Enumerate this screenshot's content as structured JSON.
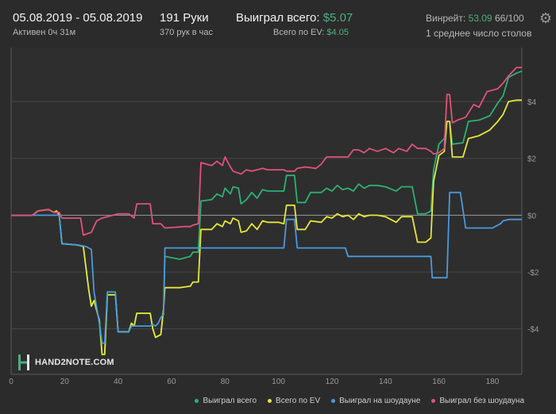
{
  "header": {
    "date_range": "05.08.2019 - 05.08.2019",
    "active": "Активен 0ч 31м",
    "hands": "191 Руки",
    "hands_per_hour": "370 рук в час",
    "won_total_label": "Выиграл всего:",
    "won_total_value": "$5.07",
    "ev_label": "Всего по EV:",
    "ev_value": "$4.05",
    "winrate_label": "Винрейт:",
    "winrate_value": "53.09",
    "winrate_hands": "66/100",
    "avg_tables": "1 среднее число столов"
  },
  "logo_text": "HAND2NOTE.COM",
  "chart_data": {
    "type": "line",
    "xlim": [
      0,
      191
    ],
    "ylim": [
      -5.6,
      5.9
    ],
    "x_ticks": [
      0,
      20,
      40,
      60,
      80,
      100,
      120,
      140,
      160,
      180
    ],
    "x_tick_labels": [
      "0",
      "20",
      "40",
      "60",
      "80",
      "100",
      "120",
      "140",
      "160",
      "180"
    ],
    "y_ticks": [
      -4,
      -2,
      0,
      2,
      4
    ],
    "y_tick_labels": [
      "-$4",
      "-$2",
      "$0",
      "$2",
      "$4"
    ],
    "grid": "horizontal",
    "legend_position": "bottom-right",
    "series": [
      {
        "name": "Выиграл всего",
        "color": "#2fb073",
        "points": [
          [
            0,
            0
          ],
          [
            8,
            0
          ],
          [
            10,
            0.15
          ],
          [
            14,
            0.2
          ],
          [
            16,
            0.1
          ],
          [
            17,
            0.15
          ],
          [
            18,
            0
          ],
          [
            19,
            -1
          ],
          [
            25,
            -1.05
          ],
          [
            27,
            -1.1
          ],
          [
            29,
            -2.6
          ],
          [
            30,
            -3.2
          ],
          [
            31,
            -3
          ],
          [
            33,
            -3.7
          ],
          [
            34,
            -4.9
          ],
          [
            35,
            -4.9
          ],
          [
            36,
            -2.8
          ],
          [
            39,
            -2.8
          ],
          [
            40,
            -4.1
          ],
          [
            44,
            -4.1
          ],
          [
            45,
            -3.8
          ],
          [
            46,
            -3.9
          ],
          [
            47,
            -3.45
          ],
          [
            52,
            -3.45
          ],
          [
            53,
            -4
          ],
          [
            54,
            -4.3
          ],
          [
            56,
            -4.2
          ],
          [
            57,
            -3.3
          ],
          [
            57.5,
            -1.45
          ],
          [
            63,
            -1.55
          ],
          [
            67,
            -1.45
          ],
          [
            68,
            -1.3
          ],
          [
            70,
            -1.3
          ],
          [
            71,
            0.5
          ],
          [
            75,
            0.55
          ],
          [
            77,
            0.75
          ],
          [
            79,
            0.65
          ],
          [
            80,
            0.95
          ],
          [
            82,
            0.75
          ],
          [
            83,
            1
          ],
          [
            85,
            0.95
          ],
          [
            86,
            0.4
          ],
          [
            88,
            0.55
          ],
          [
            90,
            0.8
          ],
          [
            92,
            0.6
          ],
          [
            94,
            0.9
          ],
          [
            96,
            0.85
          ],
          [
            100,
            0.85
          ],
          [
            102,
            0.85
          ],
          [
            103,
            1.4
          ],
          [
            106,
            1.4
          ],
          [
            107,
            0.45
          ],
          [
            110,
            0.45
          ],
          [
            112,
            0.8
          ],
          [
            116,
            0.8
          ],
          [
            118,
            0.95
          ],
          [
            120,
            0.85
          ],
          [
            122,
            1.05
          ],
          [
            124,
            0.9
          ],
          [
            126,
            0.95
          ],
          [
            128,
            0.85
          ],
          [
            130,
            1.1
          ],
          [
            132,
            0.95
          ],
          [
            134,
            1.05
          ],
          [
            137,
            1.05
          ],
          [
            140,
            1
          ],
          [
            144,
            0.85
          ],
          [
            146,
            1
          ],
          [
            150,
            1
          ],
          [
            152,
            0.05
          ],
          [
            155,
            0.05
          ],
          [
            157,
            0.15
          ],
          [
            158,
            1.6
          ],
          [
            160,
            2.5
          ],
          [
            162,
            2.7
          ],
          [
            163,
            3.3
          ],
          [
            164,
            3.3
          ],
          [
            165,
            2.5
          ],
          [
            169,
            2.55
          ],
          [
            171,
            3.3
          ],
          [
            175,
            3.35
          ],
          [
            179,
            3.5
          ],
          [
            182,
            3.95
          ],
          [
            184,
            4.2
          ],
          [
            186,
            4.85
          ],
          [
            189,
            5.0
          ],
          [
            191,
            5.07
          ]
        ]
      },
      {
        "name": "Всего по EV",
        "color": "#e6e63a",
        "points": [
          [
            0,
            0
          ],
          [
            8,
            0
          ],
          [
            10,
            0.15
          ],
          [
            14,
            0.2
          ],
          [
            16,
            0.1
          ],
          [
            17,
            0.15
          ],
          [
            18,
            0
          ],
          [
            19,
            -1
          ],
          [
            25,
            -1.05
          ],
          [
            27,
            -1.1
          ],
          [
            29,
            -2.6
          ],
          [
            30,
            -3.2
          ],
          [
            31,
            -3
          ],
          [
            33,
            -3.7
          ],
          [
            34,
            -4.9
          ],
          [
            35,
            -4.9
          ],
          [
            36,
            -2.8
          ],
          [
            39,
            -2.8
          ],
          [
            40,
            -4.1
          ],
          [
            44,
            -4.1
          ],
          [
            45,
            -3.8
          ],
          [
            46,
            -3.9
          ],
          [
            47,
            -3.45
          ],
          [
            52,
            -3.45
          ],
          [
            53,
            -4
          ],
          [
            54,
            -4.3
          ],
          [
            56,
            -4.2
          ],
          [
            57,
            -3.3
          ],
          [
            57.5,
            -2.55
          ],
          [
            63,
            -2.55
          ],
          [
            67,
            -2.5
          ],
          [
            68,
            -2.35
          ],
          [
            70,
            -2.35
          ],
          [
            71,
            -0.5
          ],
          [
            75,
            -0.5
          ],
          [
            77,
            -0.3
          ],
          [
            79,
            -0.4
          ],
          [
            80,
            -0.2
          ],
          [
            82,
            -0.3
          ],
          [
            83,
            -0.1
          ],
          [
            85,
            -0.2
          ],
          [
            86,
            -0.6
          ],
          [
            88,
            -0.55
          ],
          [
            90,
            -0.3
          ],
          [
            92,
            -0.5
          ],
          [
            94,
            -0.2
          ],
          [
            96,
            -0.25
          ],
          [
            100,
            -0.25
          ],
          [
            102,
            -0.3
          ],
          [
            103,
            0.35
          ],
          [
            106,
            0.35
          ],
          [
            107,
            -0.5
          ],
          [
            110,
            -0.5
          ],
          [
            112,
            -0.2
          ],
          [
            116,
            -0.25
          ],
          [
            118,
            -0.05
          ],
          [
            120,
            -0.1
          ],
          [
            122,
            0.05
          ],
          [
            124,
            -0.05
          ],
          [
            126,
            0
          ],
          [
            128,
            -0.15
          ],
          [
            130,
            0.05
          ],
          [
            132,
            -0.05
          ],
          [
            134,
            0
          ],
          [
            137,
            0
          ],
          [
            140,
            -0.05
          ],
          [
            144,
            -0.25
          ],
          [
            146,
            -0.05
          ],
          [
            150,
            -0.05
          ],
          [
            152,
            -0.95
          ],
          [
            155,
            -0.95
          ],
          [
            157,
            -0.8
          ],
          [
            158,
            1.2
          ],
          [
            160,
            2.1
          ],
          [
            162,
            2.25
          ],
          [
            163,
            3.3
          ],
          [
            164,
            3.3
          ],
          [
            165,
            2.05
          ],
          [
            169,
            2.05
          ],
          [
            171,
            2.7
          ],
          [
            175,
            2.8
          ],
          [
            179,
            3.0
          ],
          [
            182,
            3.3
          ],
          [
            184,
            3.55
          ],
          [
            186,
            4.0
          ],
          [
            189,
            4.05
          ],
          [
            191,
            4.05
          ]
        ]
      },
      {
        "name": "Выиграл на шоудауне",
        "color": "#4a9ade",
        "points": [
          [
            0,
            0
          ],
          [
            8,
            0
          ],
          [
            10,
            0
          ],
          [
            14,
            0
          ],
          [
            16,
            0
          ],
          [
            18,
            0
          ],
          [
            19,
            -1
          ],
          [
            25,
            -1.05
          ],
          [
            28,
            -1.1
          ],
          [
            30,
            -1.2
          ],
          [
            31,
            -2.7
          ],
          [
            33,
            -3.8
          ],
          [
            34,
            -4.5
          ],
          [
            35,
            -4.5
          ],
          [
            36,
            -2.7
          ],
          [
            39,
            -2.7
          ],
          [
            40,
            -4.1
          ],
          [
            44,
            -4.1
          ],
          [
            45,
            -3.9
          ],
          [
            47,
            -3.9
          ],
          [
            52,
            -3.9
          ],
          [
            53,
            -3.85
          ],
          [
            54,
            -3.9
          ],
          [
            55,
            -3.8
          ],
          [
            56,
            -3.6
          ],
          [
            57,
            -3.5
          ],
          [
            57.5,
            -1.15
          ],
          [
            100,
            -1.15
          ],
          [
            102,
            -1.15
          ],
          [
            103,
            -0.15
          ],
          [
            106,
            -0.15
          ],
          [
            107,
            -1.15
          ],
          [
            125,
            -1.15
          ],
          [
            126,
            -1.45
          ],
          [
            155,
            -1.45
          ],
          [
            157,
            -1.45
          ],
          [
            157.5,
            -2.2
          ],
          [
            163,
            -2.2
          ],
          [
            164,
            0.8
          ],
          [
            168,
            0.8
          ],
          [
            170,
            -0.45
          ],
          [
            180,
            -0.45
          ],
          [
            183,
            -0.3
          ],
          [
            184,
            -0.2
          ],
          [
            186,
            -0.15
          ],
          [
            191,
            -0.15
          ]
        ]
      },
      {
        "name": "Выиграл без шоудауна",
        "color": "#e0527c",
        "points": [
          [
            0,
            0
          ],
          [
            8,
            0
          ],
          [
            10,
            0.15
          ],
          [
            14,
            0.2
          ],
          [
            16,
            0.1
          ],
          [
            18,
            0.1
          ],
          [
            19,
            -0.1
          ],
          [
            26,
            -0.1
          ],
          [
            27,
            -0.7
          ],
          [
            30,
            -0.6
          ],
          [
            32,
            -0.2
          ],
          [
            34,
            -0.1
          ],
          [
            36,
            -0.05
          ],
          [
            40,
            0.05
          ],
          [
            44,
            0.05
          ],
          [
            46,
            -0.1
          ],
          [
            47,
            0.4
          ],
          [
            52,
            0.4
          ],
          [
            53,
            -0.3
          ],
          [
            56,
            -0.3
          ],
          [
            57,
            -0.4
          ],
          [
            57.5,
            -0.45
          ],
          [
            65,
            -0.4
          ],
          [
            67,
            -0.4
          ],
          [
            68,
            -0.35
          ],
          [
            70,
            -0.3
          ],
          [
            71,
            1.85
          ],
          [
            75,
            1.75
          ],
          [
            77,
            1.9
          ],
          [
            79,
            1.75
          ],
          [
            80,
            2.05
          ],
          [
            82,
            1.7
          ],
          [
            83,
            1.55
          ],
          [
            86,
            1.45
          ],
          [
            88,
            1.6
          ],
          [
            90,
            1.55
          ],
          [
            92,
            1.6
          ],
          [
            94,
            1.65
          ],
          [
            96,
            1.6
          ],
          [
            100,
            1.6
          ],
          [
            102,
            1.6
          ],
          [
            103,
            1.55
          ],
          [
            106,
            1.55
          ],
          [
            107,
            1.65
          ],
          [
            110,
            1.7
          ],
          [
            114,
            1.65
          ],
          [
            116,
            1.8
          ],
          [
            118,
            2.05
          ],
          [
            120,
            2.05
          ],
          [
            124,
            2.05
          ],
          [
            126,
            2.05
          ],
          [
            128,
            2.3
          ],
          [
            130,
            2.3
          ],
          [
            132,
            2.2
          ],
          [
            134,
            2.35
          ],
          [
            137,
            2.25
          ],
          [
            140,
            2.35
          ],
          [
            143,
            2.2
          ],
          [
            145,
            2.35
          ],
          [
            148,
            2.25
          ],
          [
            150,
            2.5
          ],
          [
            152,
            2.35
          ],
          [
            155,
            2.35
          ],
          [
            157,
            2.25
          ],
          [
            158,
            2.15
          ],
          [
            160,
            2.2
          ],
          [
            162,
            2.35
          ],
          [
            163,
            4.25
          ],
          [
            164,
            4.25
          ],
          [
            165,
            3.25
          ],
          [
            167,
            3.35
          ],
          [
            170,
            3.45
          ],
          [
            173,
            3.9
          ],
          [
            175,
            3.8
          ],
          [
            178,
            4.35
          ],
          [
            182,
            4.45
          ],
          [
            184,
            4.65
          ],
          [
            186,
            4.9
          ],
          [
            189,
            5.2
          ],
          [
            191,
            5.2
          ]
        ]
      }
    ]
  }
}
